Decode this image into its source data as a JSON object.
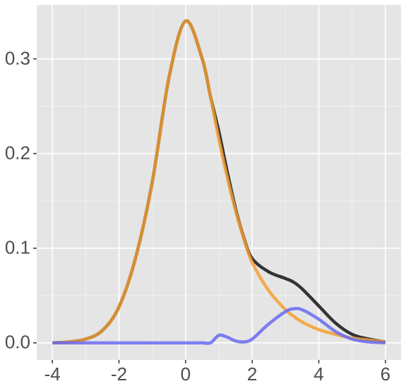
{
  "chart_data": {
    "type": "line",
    "x": [
      -4,
      -3.5,
      -3,
      -2.5,
      -2,
      -1.5,
      -1,
      -0.5,
      0,
      0.5,
      0.75,
      1,
      1.25,
      1.5,
      1.75,
      2,
      2.5,
      3,
      3.25,
      3.5,
      4,
      4.5,
      5,
      5.5,
      6
    ],
    "series": [
      {
        "color": "#333333",
        "values": [
          0,
          0.001,
          0.004,
          0.013,
          0.038,
          0.09,
          0.17,
          0.28,
          0.34,
          0.3,
          0.26,
          0.223,
          0.181,
          0.142,
          0.111,
          0.089,
          0.075,
          0.068,
          0.064,
          0.057,
          0.039,
          0.021,
          0.009,
          0.004,
          0.001
        ]
      },
      {
        "color": "#f5a033",
        "values": [
          0,
          0.001,
          0.004,
          0.013,
          0.038,
          0.09,
          0.17,
          0.28,
          0.34,
          0.3,
          0.26,
          0.215,
          0.175,
          0.14,
          0.11,
          0.085,
          0.055,
          0.035,
          0.028,
          0.022,
          0.014,
          0.009,
          0.005,
          0.003,
          0.001
        ]
      },
      {
        "color": "#6a6af2",
        "values": [
          0,
          0,
          0,
          0,
          0,
          0,
          0,
          0,
          0,
          0,
          0,
          0.008,
          0.006,
          0.002,
          0.001,
          0.004,
          0.02,
          0.033,
          0.036,
          0.035,
          0.025,
          0.012,
          0.004,
          0.001,
          0
        ]
      }
    ],
    "xlim": [
      -4.47,
      6.47
    ],
    "ylim": [
      -0.018,
      0.357
    ],
    "xticks": [
      -4,
      -2,
      0,
      2,
      4,
      6
    ],
    "yticks": [
      {
        "value": 0,
        "label": "0.0"
      },
      0.1,
      0.2,
      0.3
    ],
    "grid": true
  }
}
